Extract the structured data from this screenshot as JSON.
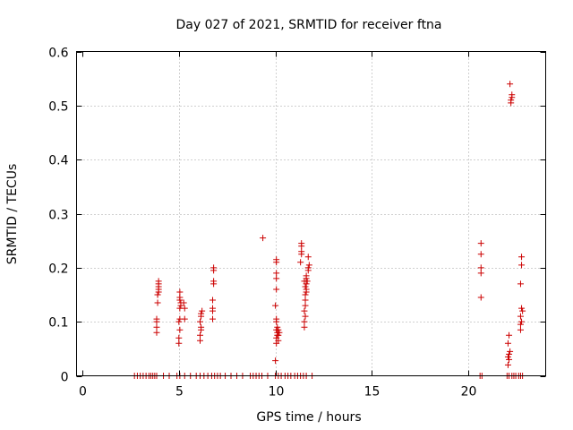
{
  "chart_data": {
    "type": "scatter",
    "title": "Day 027 of 2021, SRMTID for receiver ftna",
    "xlabel": "GPS time / hours",
    "ylabel": "SRMTID / TECUs",
    "xlim": [
      -0.3,
      24
    ],
    "ylim": [
      0,
      0.6
    ],
    "x_ticks": [
      0,
      5,
      10,
      15,
      20
    ],
    "x_tick_labels": [
      "0",
      "5",
      "10",
      "15",
      "20"
    ],
    "y_ticks": [
      0,
      0.1,
      0.2,
      0.3,
      0.4,
      0.5,
      0.6
    ],
    "y_tick_labels": [
      "0",
      "0.1",
      "0.2",
      "0.3",
      "0.4",
      "0.5",
      "0.6"
    ],
    "grid": true,
    "marker": "+",
    "color": "#cc0000",
    "series": [
      {
        "name": "SRMTID",
        "points": [
          [
            2.7,
            0
          ],
          [
            2.85,
            0
          ],
          [
            3.0,
            0
          ],
          [
            3.15,
            0
          ],
          [
            3.3,
            0
          ],
          [
            3.45,
            0
          ],
          [
            3.55,
            0
          ],
          [
            3.65,
            0
          ],
          [
            3.75,
            0
          ],
          [
            3.85,
            0
          ],
          [
            4.2,
            0
          ],
          [
            4.5,
            0
          ],
          [
            4.9,
            0
          ],
          [
            5.05,
            0
          ],
          [
            5.3,
            0
          ],
          [
            5.6,
            0
          ],
          [
            5.9,
            0
          ],
          [
            6.1,
            0
          ],
          [
            6.3,
            0
          ],
          [
            6.5,
            0
          ],
          [
            6.7,
            0
          ],
          [
            6.85,
            0
          ],
          [
            7.0,
            0
          ],
          [
            7.15,
            0
          ],
          [
            7.4,
            0
          ],
          [
            7.7,
            0
          ],
          [
            8.0,
            0
          ],
          [
            8.3,
            0
          ],
          [
            8.7,
            0
          ],
          [
            8.85,
            0
          ],
          [
            9.0,
            0
          ],
          [
            9.15,
            0
          ],
          [
            9.3,
            0
          ],
          [
            9.6,
            0
          ],
          [
            10.0,
            0
          ],
          [
            10.15,
            0
          ],
          [
            10.3,
            0
          ],
          [
            10.5,
            0
          ],
          [
            10.65,
            0
          ],
          [
            10.8,
            0
          ],
          [
            11.0,
            0
          ],
          [
            11.15,
            0
          ],
          [
            11.3,
            0
          ],
          [
            11.45,
            0
          ],
          [
            11.6,
            0
          ],
          [
            11.9,
            0
          ],
          [
            20.6,
            0
          ],
          [
            20.7,
            0
          ],
          [
            22.0,
            0
          ],
          [
            22.1,
            0
          ],
          [
            22.25,
            0
          ],
          [
            22.35,
            0
          ],
          [
            22.45,
            0
          ],
          [
            22.6,
            0
          ],
          [
            22.7,
            0
          ],
          [
            22.8,
            0
          ],
          [
            3.85,
            0.08
          ],
          [
            3.85,
            0.09
          ],
          [
            3.85,
            0.1
          ],
          [
            3.85,
            0.105
          ],
          [
            3.9,
            0.135
          ],
          [
            3.9,
            0.15
          ],
          [
            3.95,
            0.155
          ],
          [
            3.95,
            0.16
          ],
          [
            3.95,
            0.165
          ],
          [
            3.95,
            0.17
          ],
          [
            3.95,
            0.175
          ],
          [
            3.9,
            0.15
          ],
          [
            5.0,
            0.06
          ],
          [
            5.0,
            0.07
          ],
          [
            5.05,
            0.085
          ],
          [
            5.0,
            0.1
          ],
          [
            5.05,
            0.105
          ],
          [
            5.05,
            0.125
          ],
          [
            5.1,
            0.13
          ],
          [
            5.1,
            0.135
          ],
          [
            5.05,
            0.14
          ],
          [
            5.05,
            0.145
          ],
          [
            5.05,
            0.155
          ],
          [
            5.3,
            0.105
          ],
          [
            5.3,
            0.125
          ],
          [
            5.25,
            0.135
          ],
          [
            6.1,
            0.065
          ],
          [
            6.1,
            0.075
          ],
          [
            6.15,
            0.085
          ],
          [
            6.15,
            0.09
          ],
          [
            6.1,
            0.1
          ],
          [
            6.15,
            0.11
          ],
          [
            6.15,
            0.115
          ],
          [
            6.2,
            0.12
          ],
          [
            6.75,
            0.105
          ],
          [
            6.75,
            0.12
          ],
          [
            6.75,
            0.125
          ],
          [
            6.75,
            0.14
          ],
          [
            6.8,
            0.17
          ],
          [
            6.8,
            0.175
          ],
          [
            6.8,
            0.195
          ],
          [
            6.8,
            0.2
          ],
          [
            9.35,
            0.255
          ],
          [
            10.0,
            0.028
          ],
          [
            10.05,
            0.06
          ],
          [
            10.05,
            0.07
          ],
          [
            10.1,
            0.075
          ],
          [
            10.1,
            0.08
          ],
          [
            10.05,
            0.085
          ],
          [
            10.1,
            0.09
          ],
          [
            10.05,
            0.1
          ],
          [
            10.05,
            0.105
          ],
          [
            10.0,
            0.13
          ],
          [
            10.05,
            0.16
          ],
          [
            10.05,
            0.18
          ],
          [
            10.05,
            0.19
          ],
          [
            10.05,
            0.21
          ],
          [
            10.05,
            0.215
          ],
          [
            10.15,
            0.065
          ],
          [
            10.15,
            0.075
          ],
          [
            10.2,
            0.08
          ],
          [
            10.15,
            0.085
          ],
          [
            11.3,
            0.21
          ],
          [
            11.35,
            0.225
          ],
          [
            11.35,
            0.23
          ],
          [
            11.35,
            0.24
          ],
          [
            11.35,
            0.245
          ],
          [
            11.5,
            0.09
          ],
          [
            11.5,
            0.1
          ],
          [
            11.55,
            0.11
          ],
          [
            11.5,
            0.12
          ],
          [
            11.55,
            0.13
          ],
          [
            11.55,
            0.14
          ],
          [
            11.55,
            0.15
          ],
          [
            11.6,
            0.16
          ],
          [
            11.6,
            0.17
          ],
          [
            11.65,
            0.175
          ],
          [
            11.6,
            0.18
          ],
          [
            11.6,
            0.185
          ],
          [
            11.7,
            0.195
          ],
          [
            11.7,
            0.2
          ],
          [
            11.75,
            0.205
          ],
          [
            11.7,
            0.22
          ],
          [
            11.5,
            0.175
          ],
          [
            11.55,
            0.165
          ],
          [
            11.6,
            0.155
          ],
          [
            20.65,
            0.145
          ],
          [
            20.65,
            0.19
          ],
          [
            20.65,
            0.2
          ],
          [
            20.65,
            0.225
          ],
          [
            20.65,
            0.245
          ],
          [
            22.05,
            0.02
          ],
          [
            22.1,
            0.03
          ],
          [
            22.05,
            0.035
          ],
          [
            22.1,
            0.04
          ],
          [
            22.15,
            0.045
          ],
          [
            22.05,
            0.06
          ],
          [
            22.1,
            0.075
          ],
          [
            22.2,
            0.505
          ],
          [
            22.2,
            0.51
          ],
          [
            22.25,
            0.515
          ],
          [
            22.25,
            0.52
          ],
          [
            22.15,
            0.54
          ],
          [
            22.7,
            0.085
          ],
          [
            22.7,
            0.095
          ],
          [
            22.75,
            0.1
          ],
          [
            22.7,
            0.11
          ],
          [
            22.8,
            0.12
          ],
          [
            22.75,
            0.125
          ],
          [
            22.7,
            0.17
          ],
          [
            22.75,
            0.205
          ],
          [
            22.75,
            0.22
          ]
        ]
      }
    ]
  }
}
